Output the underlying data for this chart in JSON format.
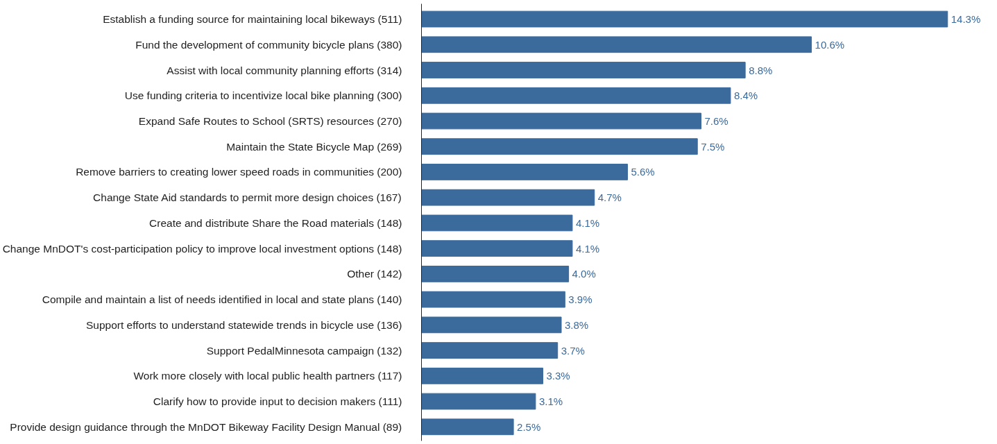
{
  "chart_data": {
    "type": "bar",
    "orientation": "horizontal",
    "color": "#3b6a9c",
    "categories": [
      "Establish a funding source for maintaining local bikeways (511)",
      "Fund the development of community bicycle plans (380)",
      "Assist with local community planning efforts (314)",
      "Use funding criteria to incentivize local bike planning (300)",
      "Expand Safe Routes to School (SRTS) resources (270)",
      "Maintain the State Bicycle Map (269)",
      "Remove barriers to creating lower speed roads in communities (200)",
      "Change State Aid standards to permit more design choices (167)",
      "Create and distribute Share the Road materials (148)",
      "Change MnDOT's cost-participation policy to improve local investment options (148)",
      "Other (142)",
      "Compile and maintain a list of needs identified in local and state plans (140)",
      "Support efforts to understand statewide trends in bicycle use (136)",
      "Support PedalMinnesota campaign (132)",
      "Work more closely with local public health partners (117)",
      "Clarify how to provide input to decision makers (111)",
      "Provide design guidance through the MnDOT Bikeway Facility Design Manual (89)"
    ],
    "values": [
      14.3,
      10.6,
      8.8,
      8.4,
      7.6,
      7.5,
      5.6,
      4.7,
      4.1,
      4.1,
      4.0,
      3.9,
      3.8,
      3.7,
      3.3,
      3.1,
      2.5
    ],
    "value_labels": [
      "14.3%",
      "10.6%",
      "8.8%",
      "8.4%",
      "7.6%",
      "7.5%",
      "5.6%",
      "4.7%",
      "4.1%",
      "4.1%",
      "4.0%",
      "3.9%",
      "3.8%",
      "3.7%",
      "3.3%",
      "3.1%",
      "2.5%"
    ],
    "tick_labels": "y"
  }
}
